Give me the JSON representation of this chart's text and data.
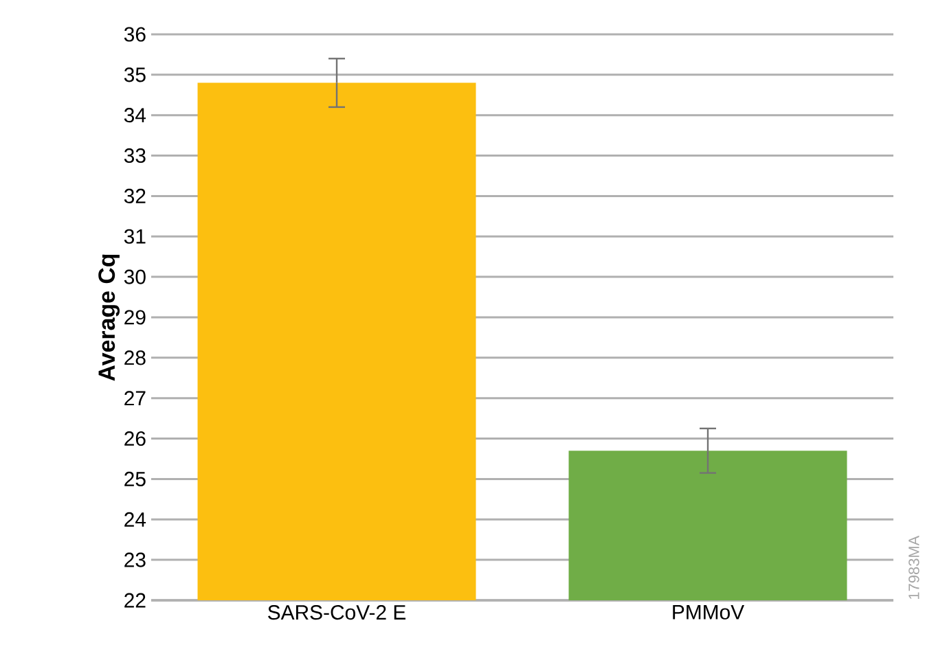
{
  "chart_data": {
    "type": "bar",
    "ylabel": "Average Cq",
    "categories": [
      "SARS-CoV-2 E",
      "PMMoV"
    ],
    "values": [
      34.8,
      25.7
    ],
    "errors": [
      0.6,
      0.55
    ],
    "colors": [
      "#fcbf10",
      "#70ad47"
    ],
    "ylim": [
      22,
      36
    ],
    "yticks": [
      22,
      23,
      24,
      25,
      26,
      27,
      28,
      29,
      30,
      31,
      32,
      33,
      34,
      35,
      36
    ],
    "grid": "y",
    "annotations": [
      "17983MA"
    ]
  }
}
